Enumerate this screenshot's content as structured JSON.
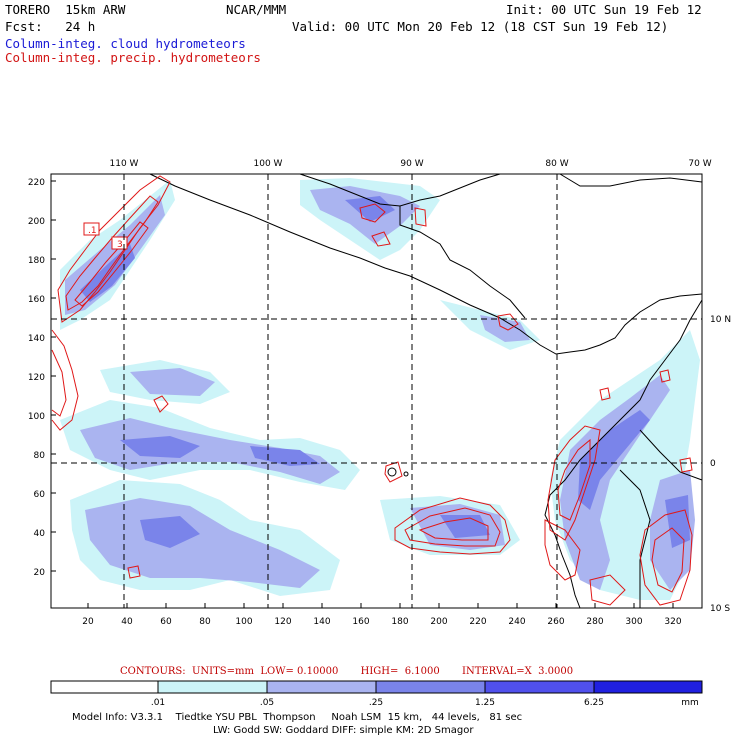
{
  "header": {
    "model": "TORERO  15km ARW",
    "org": "NCAR/MMM",
    "init": "Init: 00 UTC Sun 19 Feb 12",
    "fcst": "Fcst:   24 h",
    "valid": "Valid: 00 UTC Mon 20 Feb 12 (18 CST Sun 19 Feb 12)",
    "field1": "Column-integ. cloud hydrometeors",
    "field2": "Column-integ. precip. hydrometeors"
  },
  "map": {
    "top_lon_labels": [
      "110 W",
      "100 W",
      "90 W",
      "80 W",
      "70 W"
    ],
    "right_lat_labels": [
      "10 N",
      "0",
      "10 S"
    ],
    "left_ticks": [
      "220",
      "200",
      "180",
      "160",
      "140",
      "120",
      "100",
      "80",
      "60",
      "40",
      "20"
    ],
    "bottom_ticks": [
      "20",
      "40",
      "60",
      "80",
      "100",
      "120",
      "140",
      "160",
      "180",
      "200",
      "220",
      "240",
      "260",
      "280",
      "300",
      "320"
    ],
    "contour_labels": [
      ".1",
      "3"
    ],
    "colors": {
      "land_outline": "#000000",
      "precip_contour": "#e01818",
      "cloud_light": "#ccf4f8",
      "cloud_mid": "#aab4f0",
      "cloud_dark": "#7a84ea"
    }
  },
  "contour_info": {
    "text": "CONTOURS:  UNITS=mm  LOW= 0.10000       HIGH=  6.1000       INTERVAL=X  3.0000"
  },
  "colorbar": {
    "labels": [
      ".01",
      ".05",
      ".25",
      "1.25",
      "6.25"
    ],
    "unit": "mm",
    "colors": [
      "#ffffff",
      "#ccf4f8",
      "#aab4f0",
      "#7a84ea",
      "#5050ec",
      "#2020e0"
    ]
  },
  "footer": {
    "line1": "Model Info: V3.3.1    Tiedtke YSU PBL  Thompson     Noah LSM  15 km,   44 levels,   81 sec",
    "line2": "LW: Godd SW: Goddard DIFF: simple KM: 2D Smagor"
  }
}
